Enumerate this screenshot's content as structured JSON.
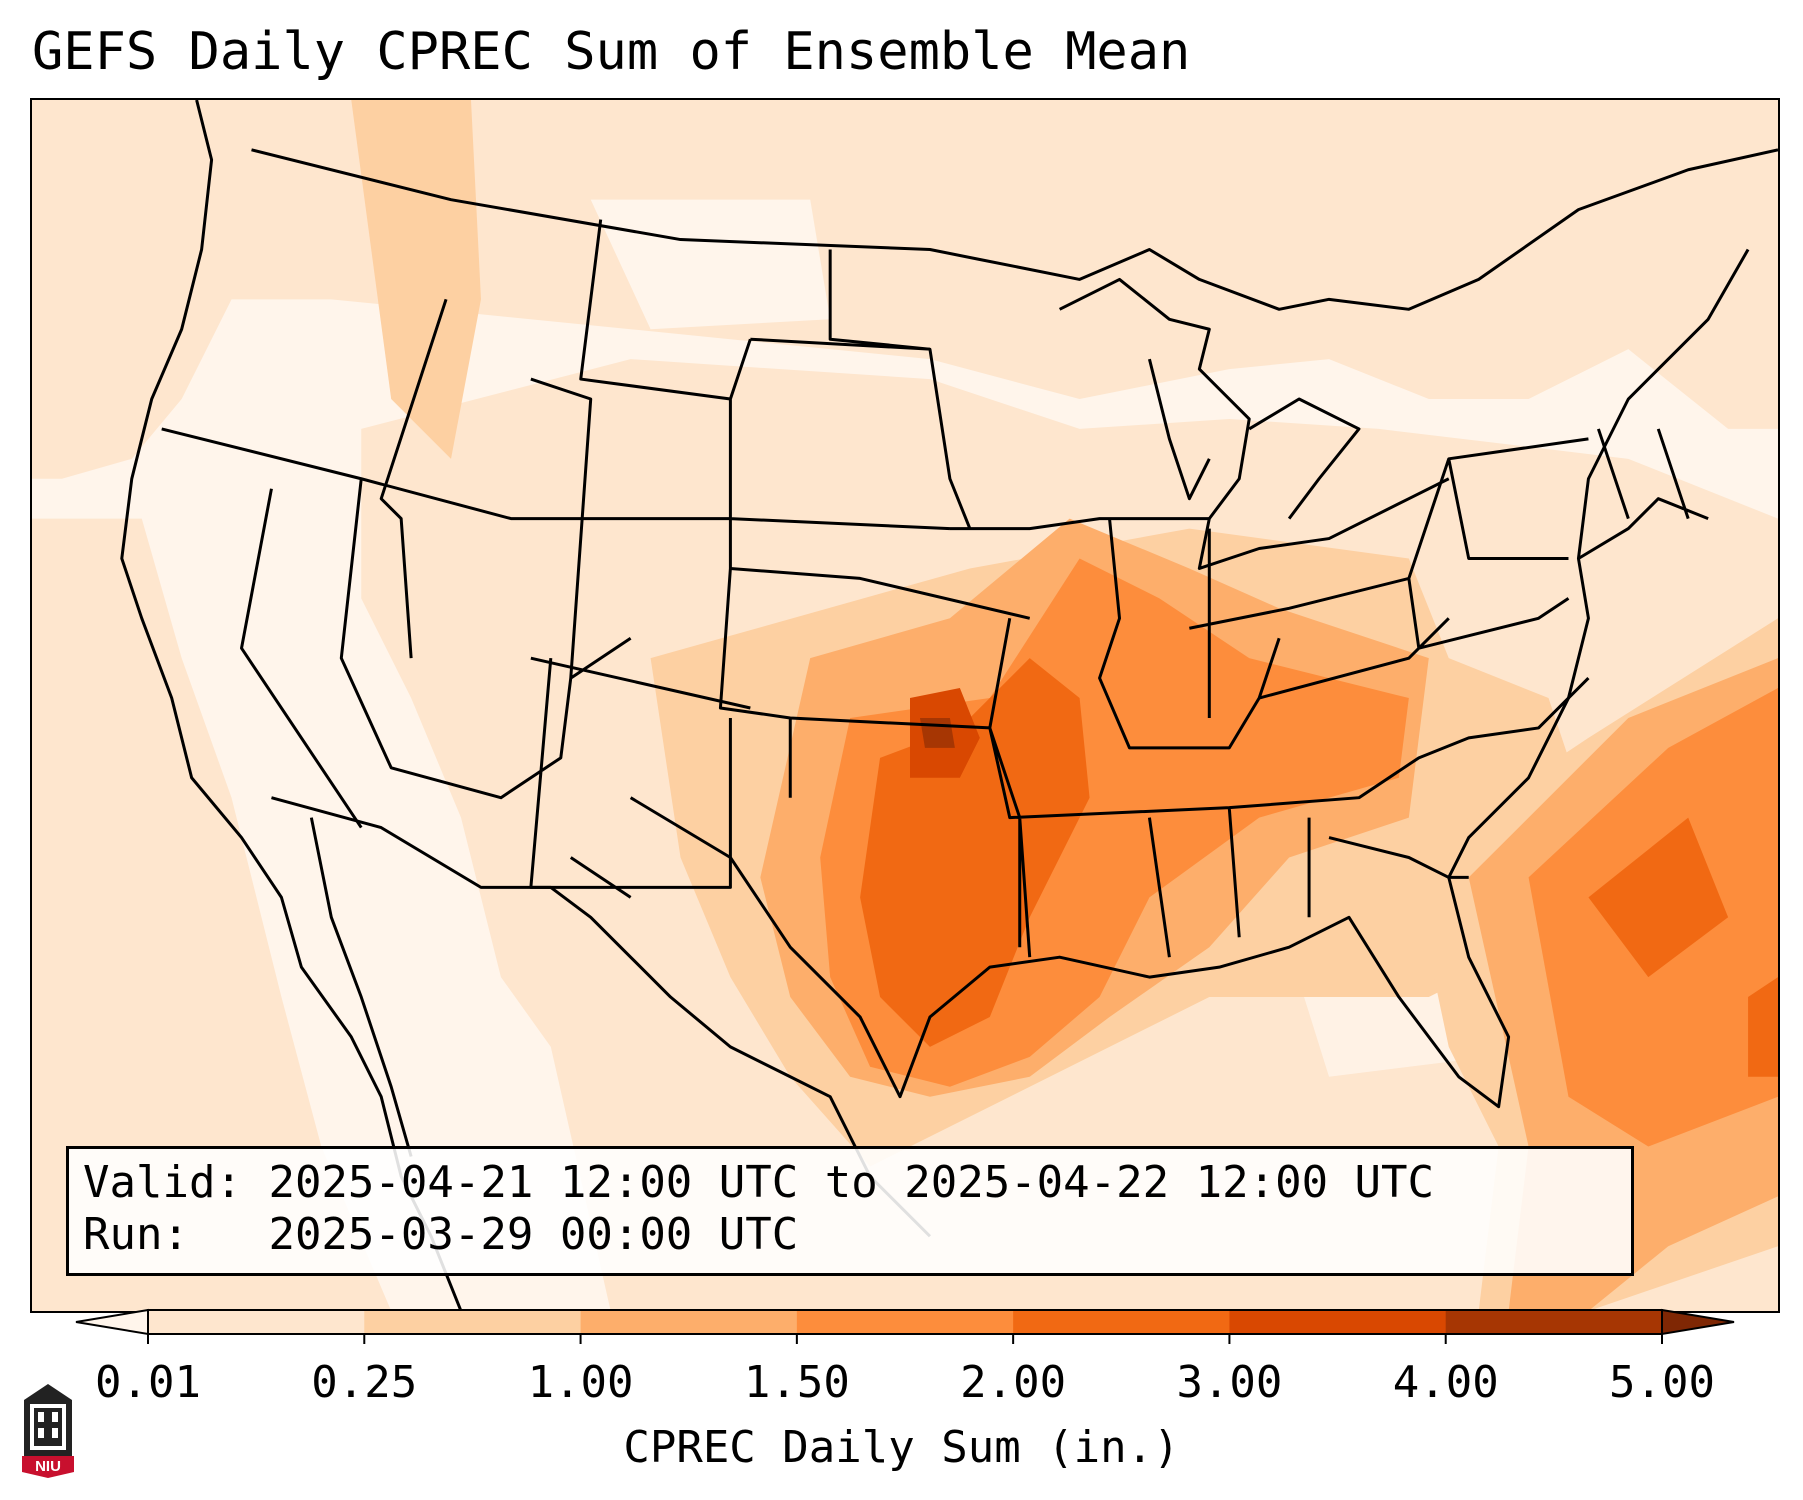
{
  "title": "GEFS Daily CPREC Sum of Ensemble Mean",
  "info": {
    "valid_label": "Valid:",
    "valid_value": "2025-04-21 12:00 UTC to 2025-04-22 12:00 UTC",
    "run_label": "Run:",
    "run_value": "2025-03-29 00:00 UTC"
  },
  "colorbar": {
    "label": "CPREC Daily Sum (in.)",
    "ticks": [
      "0.01",
      "0.25",
      "1.00",
      "1.50",
      "2.00",
      "3.00",
      "4.00",
      "5.00"
    ],
    "colors": [
      "#fff5eb",
      "#fee6ce",
      "#fdd0a2",
      "#fdae6b",
      "#fd8d3c",
      "#f16913",
      "#d94801",
      "#a63603",
      "#7f2704"
    ],
    "extend": "both"
  },
  "logo": {
    "text": "NIU",
    "colors": {
      "body": "#222222",
      "banner": "#c8102e"
    }
  },
  "map": {
    "projection": "lambert-conformal",
    "region": "CONUS",
    "background_color": "#fff5eb",
    "boundary_color": "#000000"
  }
}
